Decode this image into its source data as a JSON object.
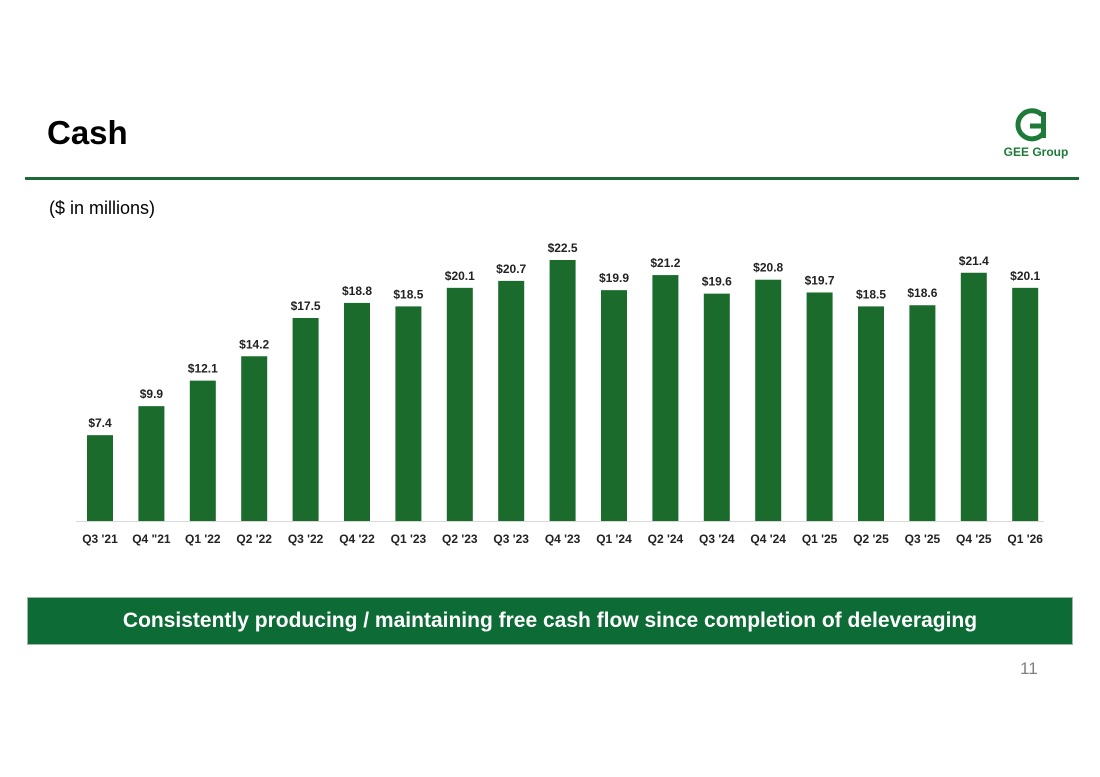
{
  "slide": {
    "title": "Cash",
    "unit_label": "($ in millions)",
    "logo_text": "GEE Group",
    "banner_text": "Consistently producing / maintaining free cash flow since completion of deleveraging",
    "page_number": "11"
  },
  "colors": {
    "bar": "#1a6b2c",
    "rule": "#1c6b36",
    "banner": "#0d6b35",
    "logo": "#1f7a3a"
  },
  "icons": {
    "logo": "gee-group-logo-icon"
  },
  "chart_data": {
    "type": "bar",
    "categories": [
      "Q3 '21",
      "Q4 \"21",
      "Q1 '22",
      "Q2 '22",
      "Q3 '22",
      "Q4 '22",
      "Q1 '23",
      "Q2 '23",
      "Q3 '23",
      "Q4 '23",
      "Q1 '24",
      "Q2 '24",
      "Q3 '24",
      "Q4 '24",
      "Q1 '25",
      "Q2 '25",
      "Q3 '25",
      "Q4 '25",
      "Q1 '26"
    ],
    "values": [
      7.4,
      9.9,
      12.1,
      14.2,
      17.5,
      18.8,
      18.5,
      20.1,
      20.7,
      22.5,
      19.9,
      21.2,
      19.6,
      20.8,
      19.7,
      18.5,
      18.6,
      21.4,
      20.1
    ],
    "data_labels": [
      "$7.4",
      "$9.9",
      "$12.1",
      "$14.2",
      "$17.5",
      "$18.8",
      "$18.5",
      "$20.1",
      "$20.7",
      "$22.5",
      "$19.9",
      "$21.2",
      "$19.6",
      "$20.8",
      "$19.7",
      "$18.5",
      "$18.6",
      "$21.4",
      "$20.1"
    ],
    "title": "",
    "xlabel": "",
    "ylabel": "",
    "ylim": [
      0,
      22.5
    ],
    "grid": false,
    "legend": "none"
  }
}
